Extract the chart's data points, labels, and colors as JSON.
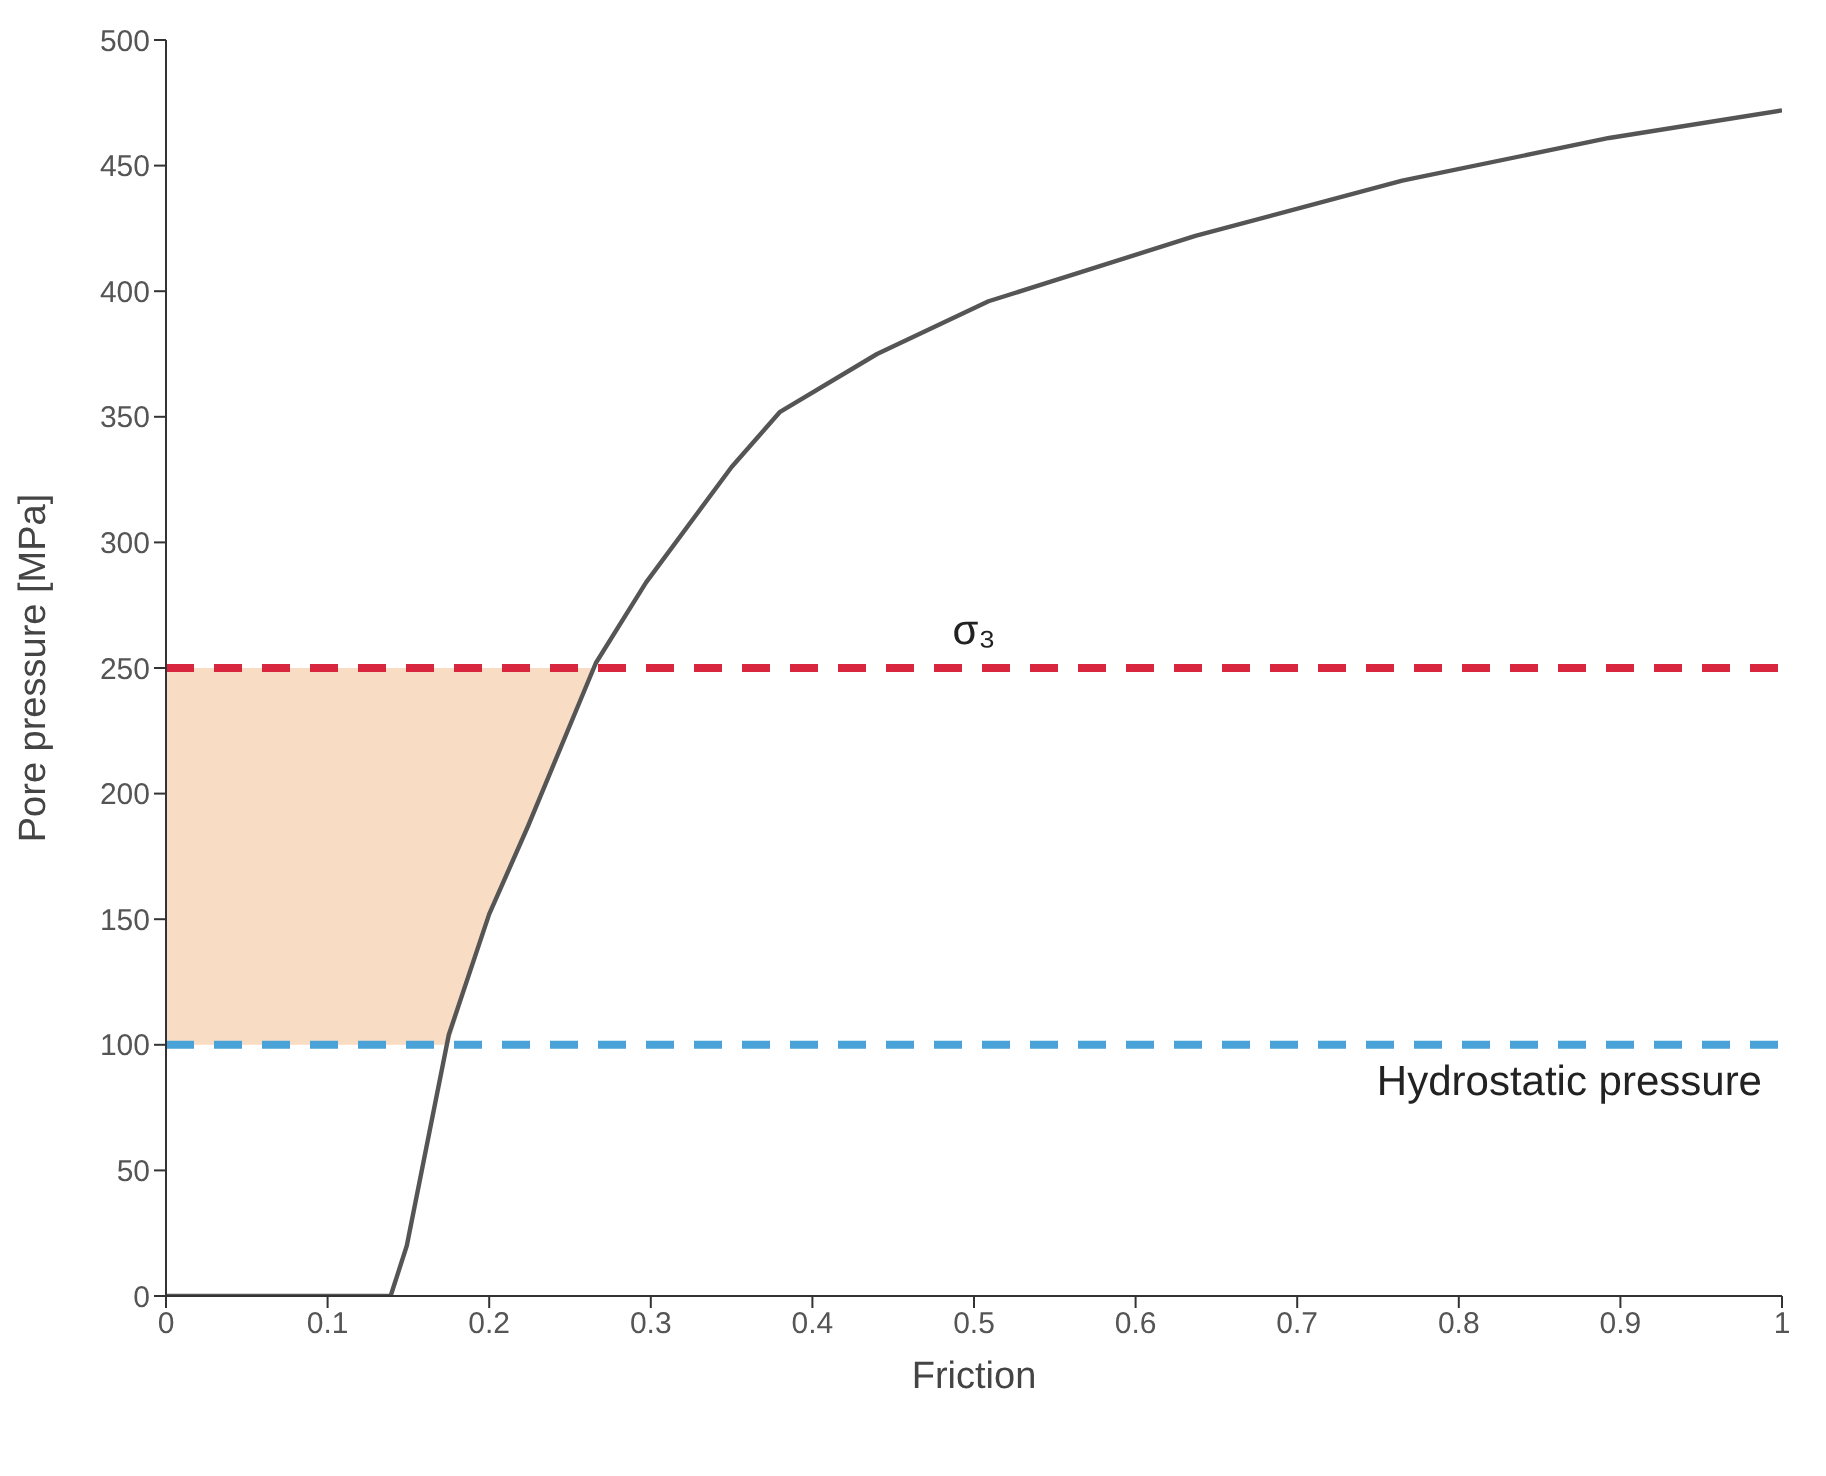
{
  "chart_data": {
    "type": "line",
    "xlabel": "Friction",
    "ylabel": "Pore pressure [MPa]",
    "xlim": [
      0,
      1
    ],
    "xticks": [
      0,
      0.1,
      0.2,
      0.3,
      0.4,
      0.5,
      0.6,
      0.7,
      0.8,
      0.9,
      1
    ],
    "ylim": [
      0,
      500
    ],
    "yticks": [
      0,
      50,
      100,
      150,
      200,
      250,
      300,
      350,
      400,
      450,
      500
    ],
    "grid": false,
    "legend": false,
    "marker": "none",
    "line_style": "solid",
    "series": [
      {
        "color": "#555555",
        "x": [
          0,
          0.139,
          0.149,
          0.175,
          0.2,
          0.224,
          0.266,
          0.297,
          0.35,
          0.38,
          0.44,
          0.509,
          0.637,
          0.765,
          0.893,
          1
        ],
        "values": [
          0,
          0,
          20,
          104,
          152,
          187,
          252,
          284,
          330,
          352,
          375,
          396,
          422,
          444,
          461,
          472
        ],
        "lower": [
          100,
          100,
          100,
          100,
          152,
          187,
          250,
          null,
          null,
          null,
          null,
          null,
          null,
          null,
          null,
          null
        ],
        "upper": [
          250,
          250,
          250,
          250,
          250,
          250,
          250,
          null,
          null,
          null,
          null,
          null,
          null,
          null,
          null,
          null
        ]
      }
    ],
    "ref_lines": [
      {
        "axis": "y",
        "value": 250,
        "label": "σ₃",
        "color": "#d7263d",
        "line_style": "dashed"
      },
      {
        "axis": "y",
        "value": 100,
        "label": "Hydrostatic pressure",
        "color": "#4aa3d8",
        "line_style": "dashed"
      }
    ]
  }
}
